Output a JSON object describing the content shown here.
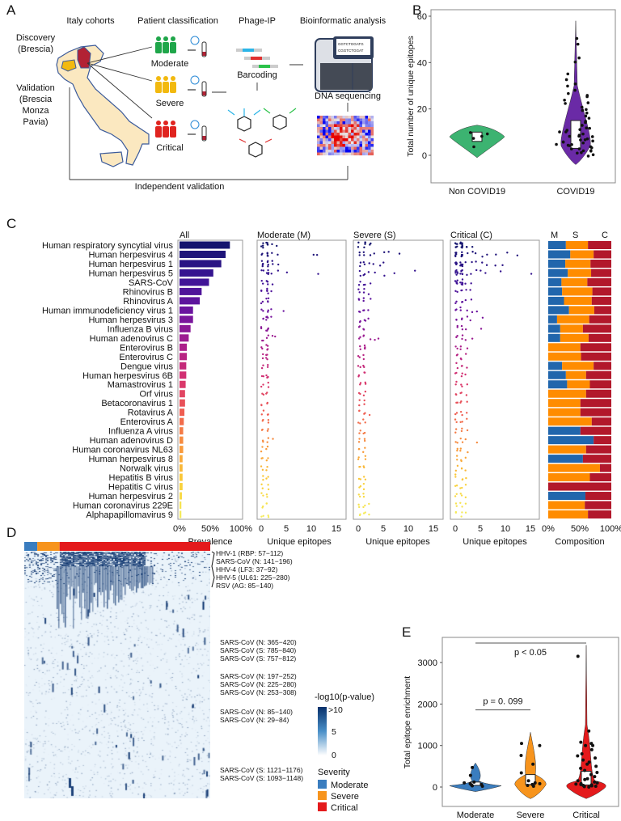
{
  "panels": {
    "A": "A",
    "B": "B",
    "C": "C",
    "D": "D",
    "E": "E"
  },
  "panel_a": {
    "steps": [
      "Italy cohorts",
      "Patient classification",
      "Phage-IP",
      "Bioinformatic analysis"
    ],
    "discovery": [
      "Discovery",
      "(Brescia)"
    ],
    "validation": [
      "Validation",
      "(Brescia",
      "Monza",
      "Pavia)"
    ],
    "groups": [
      "Moderate",
      "Severe",
      "Critical"
    ],
    "group_colors": [
      "#1fa64a",
      "#f2b90f",
      "#e0241f"
    ],
    "barcoding": "Barcoding",
    "sequencing": "DNA sequencing",
    "screen_seq": [
      "GGTCTGGATG",
      "CGGTCTGGAT"
    ],
    "footer": "Independent validation"
  },
  "chart_data": [
    {
      "id": "B",
      "type": "violin",
      "ylabel": "Total number of unique epitopes",
      "categories": [
        "Non COVID19",
        "COVID19"
      ],
      "colors": [
        "#3cb371",
        "#6a2aa6"
      ],
      "ylim": [
        -5,
        62
      ],
      "yticks": [
        0,
        20,
        40,
        60
      ],
      "series": [
        {
          "points": [
            4,
            7,
            8,
            9,
            10
          ]
        },
        {
          "points": [
            0,
            0,
            1,
            1,
            2,
            2,
            2,
            3,
            3,
            3,
            4,
            4,
            4,
            5,
            5,
            5,
            6,
            6,
            6,
            7,
            7,
            7,
            8,
            8,
            8,
            9,
            9,
            10,
            10,
            11,
            11,
            12,
            12,
            13,
            14,
            15,
            16,
            17,
            18,
            19,
            20,
            21,
            22,
            23,
            24,
            25,
            26,
            27,
            28,
            30,
            31,
            33,
            35,
            40,
            42,
            48,
            50
          ]
        }
      ]
    },
    {
      "id": "C",
      "type": "bar+dot",
      "panel_titles": [
        "All",
        "Moderate (M)",
        "Severe (S)",
        "Critical (C)"
      ],
      "composition_header": [
        "M",
        "S",
        "C"
      ],
      "xlabels": [
        "Prevalence",
        "Unique epitopes",
        "Unique epitopes",
        "Unique epitopes",
        "Composition"
      ],
      "pct_ticks": [
        "0%",
        "50%",
        "100%"
      ],
      "epi_ticks": [
        0,
        5,
        10,
        15
      ],
      "composition_colors": [
        "#2166ac",
        "#ff8c00",
        "#b2182b"
      ],
      "viruses": [
        "Human respiratory syncytial virus",
        "Human herpesvirus 4",
        "Human herpesvirus 1",
        "Human herpesvirus 5",
        "SARS-CoV",
        "Rhinovirus B",
        "Rhinovirus A",
        "Human immunodeficiency virus 1",
        "Human herpesvirus 3",
        "Influenza B virus",
        "Human adenovirus C",
        "Enterovirus B",
        "Enterovirus C",
        "Dengue virus",
        "Human herpesvirus 6B",
        "Mamastrovirus 1",
        "Orf virus",
        "Betacoronavirus 1",
        "Rotavirus A",
        "Enterovirus A",
        "Influenza A virus",
        "Human adenovirus D",
        "Human coronavirus NL63",
        "Human herpesvirus 8",
        "Norwalk virus",
        "Hepatitis B virus",
        "Hepatitis C virus",
        "Human herpesvirus 2",
        "Human coronavirus 229E",
        "Alphapapillomavirus 9"
      ],
      "prevalence": [
        0.82,
        0.75,
        0.68,
        0.55,
        0.48,
        0.36,
        0.33,
        0.22,
        0.22,
        0.18,
        0.15,
        0.12,
        0.12,
        0.11,
        0.11,
        0.1,
        0.09,
        0.09,
        0.08,
        0.07,
        0.06,
        0.06,
        0.06,
        0.05,
        0.05,
        0.05,
        0.05,
        0.04,
        0.03,
        0.03
      ],
      "moderate": [
        [
          0,
          0,
          1,
          1,
          2,
          3
        ],
        [
          0,
          1,
          1,
          2,
          3,
          10,
          11
        ],
        [
          0,
          0,
          1,
          1,
          2,
          2,
          3
        ],
        [
          0,
          1,
          1,
          2,
          3,
          5,
          11
        ],
        [
          0,
          1,
          1,
          2
        ],
        [
          0,
          1,
          1,
          2
        ],
        [
          0,
          1,
          1
        ],
        [
          0,
          1,
          2,
          4
        ],
        [
          0,
          1,
          1,
          2
        ],
        [
          0,
          1,
          1
        ],
        [
          0,
          1,
          2,
          2.5
        ],
        [
          0,
          1,
          1
        ],
        [
          0,
          1,
          1
        ],
        [
          0,
          1
        ],
        [
          0,
          1,
          1
        ],
        [
          0,
          1
        ],
        [
          0,
          1
        ],
        [
          0,
          1
        ],
        [
          0,
          1
        ],
        [
          0,
          1
        ],
        [
          0,
          1
        ],
        [
          0,
          1,
          2
        ],
        [
          0,
          1
        ],
        [
          0,
          1
        ],
        [
          0,
          1
        ],
        [
          0,
          1
        ],
        [
          0,
          1
        ],
        [
          0,
          1
        ],
        [
          0,
          1
        ],
        [
          0,
          1
        ]
      ],
      "severe": [
        [
          0,
          1,
          1,
          2,
          2
        ],
        [
          0,
          1,
          2,
          3,
          5,
          6,
          8
        ],
        [
          0,
          1,
          2,
          3,
          4,
          5
        ],
        [
          0,
          1,
          2,
          3,
          5,
          7,
          11
        ],
        [
          0,
          1,
          2
        ],
        [
          0,
          1,
          2
        ],
        [
          0,
          1,
          2
        ],
        [
          0,
          1,
          2
        ],
        [
          0,
          1,
          2
        ],
        [
          0,
          1
        ],
        [
          0,
          1,
          2,
          3,
          4
        ],
        [
          0,
          1,
          1
        ],
        [
          0,
          1
        ],
        [
          0,
          1
        ],
        [
          0,
          1
        ],
        [
          0,
          1
        ],
        [
          0,
          1
        ],
        [
          0,
          1
        ],
        [
          0,
          1,
          2
        ],
        [
          0,
          1
        ],
        [
          0,
          1
        ],
        [
          0,
          1
        ],
        [
          0,
          1
        ],
        [
          0,
          1
        ],
        [
          0,
          1
        ],
        [
          0,
          1
        ],
        [
          0,
          1
        ],
        [
          0,
          1
        ],
        [
          0,
          1,
          2
        ],
        [
          0,
          1,
          2
        ]
      ],
      "critical": [
        [
          0,
          1,
          1,
          2,
          2,
          3
        ],
        [
          0,
          1,
          2,
          3,
          4,
          5,
          6,
          8,
          10,
          12
        ],
        [
          0,
          1,
          2,
          3,
          4,
          5,
          6,
          8,
          9
        ],
        [
          0,
          1,
          2,
          3,
          4,
          5,
          6,
          9,
          15
        ],
        [
          0,
          1,
          2,
          3
        ],
        [
          0,
          1,
          2,
          3
        ],
        [
          0,
          1,
          2,
          3
        ],
        [
          0,
          1,
          2,
          3,
          4
        ],
        [
          0,
          1,
          2,
          3,
          5
        ],
        [
          0,
          1,
          2,
          5
        ],
        [
          0,
          1,
          2,
          3
        ],
        [
          0,
          1,
          2
        ],
        [
          0,
          1,
          2
        ],
        [
          0,
          1,
          2
        ],
        [
          0,
          1,
          2
        ],
        [
          0,
          1,
          2
        ],
        [
          0,
          1,
          2
        ],
        [
          0,
          1,
          2
        ],
        [
          0,
          1,
          2
        ],
        [
          0,
          1,
          2
        ],
        [
          0,
          1,
          2
        ],
        [
          0,
          1,
          2,
          4
        ],
        [
          0,
          1,
          2
        ],
        [
          0,
          1,
          2
        ],
        [
          0,
          1,
          2
        ],
        [
          0,
          1,
          2
        ],
        [
          0,
          1,
          2
        ],
        [
          0,
          1,
          2
        ],
        [
          0,
          1,
          2
        ],
        [
          0,
          1,
          2
        ]
      ],
      "composition": [
        [
          0.28,
          0.35,
          0.37
        ],
        [
          0.35,
          0.37,
          0.28
        ],
        [
          0.27,
          0.4,
          0.33
        ],
        [
          0.31,
          0.37,
          0.32
        ],
        [
          0.21,
          0.41,
          0.38
        ],
        [
          0.22,
          0.48,
          0.3
        ],
        [
          0.25,
          0.44,
          0.31
        ],
        [
          0.33,
          0.4,
          0.27
        ],
        [
          0.14,
          0.51,
          0.35
        ],
        [
          0.19,
          0.36,
          0.45
        ],
        [
          0.19,
          0.45,
          0.36
        ],
        [
          0,
          0.51,
          0.49
        ],
        [
          0,
          0.52,
          0.48
        ],
        [
          0.22,
          0.5,
          0.28
        ],
        [
          0.28,
          0.32,
          0.4
        ],
        [
          0.3,
          0.36,
          0.34
        ],
        [
          0,
          0.6,
          0.4
        ],
        [
          0,
          0.51,
          0.49
        ],
        [
          0,
          0.51,
          0.49
        ],
        [
          0,
          0.69,
          0.31
        ],
        [
          0.51,
          0,
          0.49
        ],
        [
          0.72,
          0,
          0.28
        ],
        [
          0,
          0.6,
          0.4
        ],
        [
          0.55,
          0,
          0.45
        ],
        [
          0,
          0.82,
          0.18
        ],
        [
          0,
          0.66,
          0.34
        ],
        [
          0,
          0,
          1
        ],
        [
          0.59,
          0,
          0.41
        ],
        [
          0,
          0.58,
          0.42
        ],
        [
          0,
          0.63,
          0.37
        ]
      ]
    },
    {
      "id": "D",
      "type": "heatmap",
      "severity_bar": [
        {
          "label": "Moderate",
          "fraction": 0.07
        },
        {
          "label": "Severe",
          "fraction": 0.12
        },
        {
          "label": "Critical",
          "fraction": 0.81
        }
      ],
      "row_labels": [
        "HHV-1 (RBP: 57−112)",
        "SARS-CoV (N: 141−196)",
        "HHV-4 (LF3: 37−92)",
        "HHV-5 (UL61: 225−280)",
        "RSV (AG: 85−140)",
        "SARS-CoV (N: 365−420)",
        "SARS-CoV (S: 785−840)",
        "SARS-CoV (S: 757−812)",
        "SARS-CoV (N: 197−252)",
        "SARS-CoV (N: 225−280)",
        "SARS-CoV (N: 253−308)",
        "SARS-CoV (N: 85−140)",
        "SARS-CoV (N: 29−84)",
        "SARS-CoV (S: 1121−1176)",
        "SARS-CoV (S: 1093−1148)"
      ],
      "colorbar_title": "-log10(p-value)",
      "colorbar_ticks": [
        ">10",
        "5",
        "0"
      ],
      "legend_title": "Severity",
      "legend": [
        {
          "label": "Moderate",
          "color": "#3a7dbf"
        },
        {
          "label": "Severe",
          "color": "#f7941d"
        },
        {
          "label": "Critical",
          "color": "#e41a1c"
        }
      ]
    },
    {
      "id": "E",
      "type": "violin",
      "ylabel": "Total epitope enrichment",
      "categories": [
        "Moderate",
        "Severe",
        "Critical"
      ],
      "colors": [
        "#3a7dbf",
        "#f7941d",
        "#e41a1c"
      ],
      "ylim": [
        -450,
        3500
      ],
      "yticks": [
        0,
        1000,
        2000,
        3000
      ],
      "series": [
        {
          "points": [
            20,
            30,
            50,
            60,
            80,
            100,
            120,
            280,
            470
          ]
        },
        {
          "points": [
            20,
            40,
            60,
            80,
            100,
            150,
            340,
            550,
            760,
            1000,
            1050
          ]
        },
        {
          "points": [
            0,
            10,
            20,
            30,
            40,
            50,
            60,
            70,
            80,
            100,
            120,
            150,
            180,
            200,
            250,
            300,
            350,
            400,
            450,
            500,
            550,
            600,
            650,
            700,
            750,
            800,
            900,
            1000,
            1000,
            1050,
            1080,
            1350,
            3150
          ]
        }
      ],
      "comparisons": [
        {
          "groups": [
            "Moderate",
            "Severe"
          ],
          "label": "p = 0. 099"
        },
        {
          "groups": [
            "Moderate",
            "Critical"
          ],
          "label": "p < 0.05"
        }
      ]
    }
  ]
}
